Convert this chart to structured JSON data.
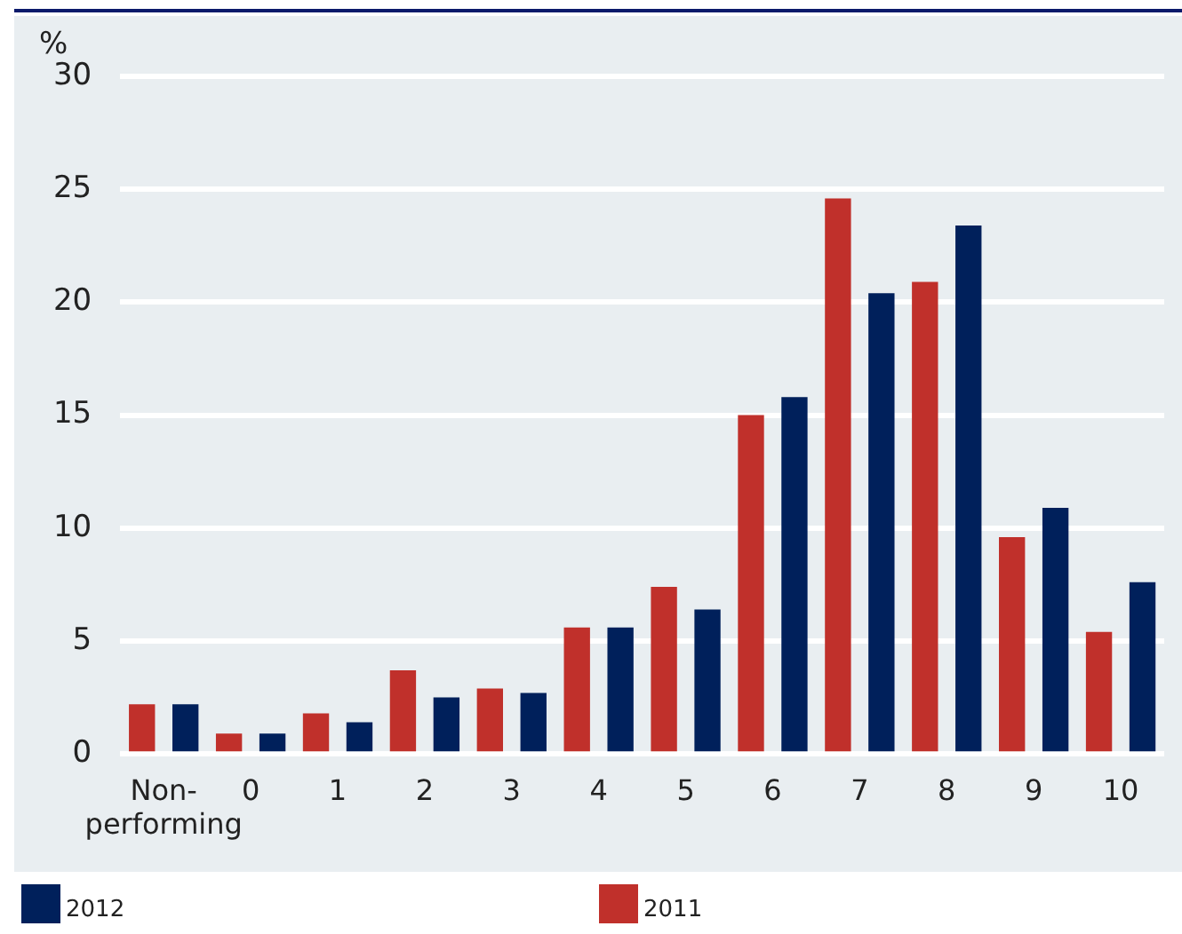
{
  "chart_data": {
    "type": "bar",
    "ylabel": "%",
    "categories": [
      "Non-performing",
      "0",
      "1",
      "2",
      "3",
      "4",
      "5",
      "6",
      "7",
      "8",
      "9",
      "10"
    ],
    "series": [
      {
        "name": "2011",
        "color": "#c0302b",
        "values": [
          2.2,
          0.9,
          1.8,
          3.7,
          2.9,
          5.6,
          7.4,
          15.0,
          24.6,
          20.9,
          9.6,
          5.4
        ]
      },
      {
        "name": "2012",
        "color": "#00205b",
        "values": [
          2.2,
          0.9,
          1.4,
          2.5,
          2.7,
          5.6,
          6.4,
          15.8,
          20.4,
          23.4,
          10.9,
          7.6
        ]
      }
    ],
    "ylim": [
      0,
      30
    ],
    "yticks": [
      0,
      5,
      10,
      15,
      20,
      25,
      30
    ],
    "grid": "y",
    "legend": "bottom"
  }
}
